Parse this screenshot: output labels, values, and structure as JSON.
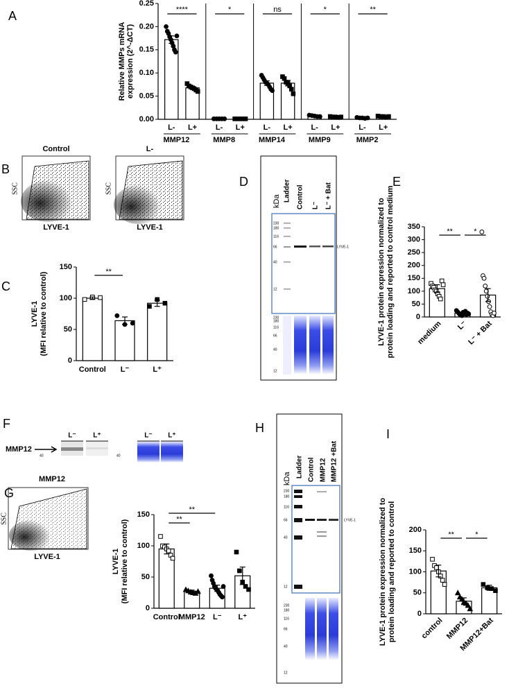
{
  "chart_data": [
    {
      "type": "grouped-bar",
      "panel": "A",
      "y_label": [
        "Relative MMPs  mRNA",
        "expression (2^-ΔCT)"
      ],
      "ylim": [
        0,
        0.25
      ],
      "yticks": [
        {
          "value": 0,
          "label": "0.00"
        },
        {
          "value": 0.05,
          "label": "0.05"
        },
        {
          "value": 0.1,
          "label": "0.10"
        },
        {
          "value": 0.15,
          "label": "0.15"
        },
        {
          "value": 0.2,
          "label": "0.20"
        },
        {
          "value": 0.25,
          "label": "0.25"
        }
      ],
      "color": "#ffffff",
      "markers": [
        "circle",
        "square"
      ],
      "groups": [
        {
          "name": "MMP12",
          "categories": [
            "L-",
            "L+"
          ],
          "values": [
            0.172,
            0.068
          ],
          "errors": [
            0.008,
            0.003
          ],
          "significance": "****",
          "points": [
            [
              0.2,
              0.19,
              0.185,
              0.178,
              0.172,
              0.165,
              0.158,
              0.15,
              0.145,
              0.18
            ],
            [
              0.077,
              0.072,
              0.07,
              0.068,
              0.066,
              0.063,
              0.06
            ]
          ]
        },
        {
          "name": "MMP8",
          "categories": [
            "L-",
            "L+"
          ],
          "values": [
            0.001,
            0.001
          ],
          "errors": [
            0.0002,
            0.0002
          ],
          "significance": "*",
          "points": [
            [
              0.001,
              0.001,
              0.001,
              0.001,
              0.001
            ],
            [
              0.001,
              0.001,
              0.001,
              0.001
            ]
          ]
        },
        {
          "name": "MMP14",
          "categories": [
            "L-",
            "L+"
          ],
          "values": [
            0.078,
            0.078
          ],
          "errors": [
            0.005,
            0.006
          ],
          "significance": "ns",
          "points": [
            [
              0.095,
              0.09,
              0.085,
              0.08,
              0.078,
              0.075,
              0.07,
              0.065,
              0.062
            ],
            [
              0.092,
              0.088,
              0.08,
              0.078,
              0.072,
              0.065,
              0.055
            ]
          ]
        },
        {
          "name": "MMP9",
          "categories": [
            "L-",
            "L+"
          ],
          "values": [
            0.007,
            0.005
          ],
          "errors": [
            0.001,
            0.001
          ],
          "significance": "*",
          "points": [
            [
              0.009,
              0.008,
              0.007,
              0.006,
              0.006
            ],
            [
              0.006,
              0.005,
              0.005,
              0.004,
              0.005
            ]
          ]
        },
        {
          "name": "MMP2",
          "categories": [
            "L-",
            "L+"
          ],
          "values": [
            0.003,
            0.006
          ],
          "errors": [
            0.0005,
            0.0005
          ],
          "significance": "**",
          "points": [
            [
              0.004,
              0.003,
              0.003,
              0.002,
              0.003
            ],
            [
              0.007,
              0.006,
              0.006,
              0.005,
              0.006
            ]
          ]
        }
      ]
    },
    {
      "type": "bar",
      "panel": "C",
      "y_label": [
        "LYVE-1",
        "(MFI relative to control)"
      ],
      "categories": [
        "Control",
        "L⁻",
        "L⁺"
      ],
      "values": [
        100,
        64,
        92
      ],
      "errors": [
        2,
        6,
        5
      ],
      "points": [
        [
          98,
          102,
          101
        ],
        [
          72,
          58,
          60
        ],
        [
          87,
          98,
          92
        ]
      ],
      "markers": [
        "square-open",
        "circle",
        "square"
      ],
      "significance": [
        {
          "from": "Control",
          "to": "L⁻",
          "label": "**"
        }
      ],
      "ylim": [
        0,
        150
      ],
      "yticks": [
        0,
        50,
        100,
        150
      ],
      "color": "#ffffff"
    },
    {
      "type": "bar",
      "panel": "E",
      "y_label": [
        "LYVE-1 protein expression normalized  to",
        "protein loading and reported to control medium"
      ],
      "categories": [
        "medium",
        "L⁻",
        "L⁻ + Bat"
      ],
      "values": [
        110,
        15,
        85
      ],
      "errors": [
        15,
        4,
        25
      ],
      "points": [
        [
          130,
          120,
          115,
          105,
          100,
          90,
          80,
          70,
          140,
          125
        ],
        [
          25,
          20,
          15,
          10,
          8,
          5,
          18,
          12,
          22,
          10,
          15,
          12
        ],
        [
          330,
          160,
          150,
          120,
          100,
          80,
          60,
          40,
          20,
          10,
          5,
          15
        ]
      ],
      "markers": [
        "square-open",
        "circle",
        "circle-open"
      ],
      "significance": [
        {
          "from": "medium",
          "to": "L⁻",
          "label": "**"
        },
        {
          "from": "L⁻",
          "to": "L⁻ + Bat",
          "label": "*"
        }
      ],
      "ylim": [
        0,
        350
      ],
      "yticks": [
        0,
        50,
        100,
        150,
        200,
        250,
        300,
        350
      ],
      "color": "#ffffff",
      "rotate_labels": true
    },
    {
      "type": "bar",
      "panel": "G",
      "y_label": [
        "LYVE-1",
        "(MFI relative to control)"
      ],
      "categories": [
        "Control",
        "MMP12",
        "L⁻",
        "L⁺"
      ],
      "values": [
        95,
        27,
        32,
        52
      ],
      "errors": [
        8,
        2,
        5,
        14
      ],
      "points": [
        [
          115,
          100,
          98,
          95,
          92,
          85,
          80
        ],
        [
          30,
          28,
          26,
          25,
          24,
          27
        ],
        [
          52,
          45,
          40,
          35,
          32,
          30,
          28,
          25,
          22,
          20,
          18,
          35
        ],
        [
          90,
          60,
          42,
          35,
          30
        ]
      ],
      "markers": [
        "square-open",
        "triangle",
        "circle",
        "square"
      ],
      "significance": [
        {
          "from": "Control",
          "to": "MMP12",
          "label": "**"
        },
        {
          "from": "Control",
          "to": "L⁻",
          "label": "**"
        }
      ],
      "ylim": [
        0,
        150
      ],
      "yticks": [
        0,
        50,
        100,
        150
      ],
      "color": "#ffffff"
    },
    {
      "type": "bar",
      "panel": "I",
      "y_label": [
        "LYVE-1 protein expression normalized  to",
        "protein loading and reported to control"
      ],
      "categories": [
        "control",
        "MMP12",
        "MMP12+Bat"
      ],
      "values": [
        102,
        30,
        62
      ],
      "errors": [
        14,
        8,
        6
      ],
      "points": [
        [
          130,
          115,
          110,
          100,
          90,
          80,
          70
        ],
        [
          50,
          40,
          35,
          28,
          25,
          20,
          12
        ],
        [
          70,
          62,
          60,
          55
        ]
      ],
      "markers": [
        "square-open",
        "triangle",
        "square"
      ],
      "significance": [
        {
          "from": "control",
          "to": "MMP12",
          "label": "**"
        },
        {
          "from": "MMP12",
          "to": "MMP12+Bat",
          "label": "*"
        }
      ],
      "ylim": [
        0,
        200
      ],
      "yticks": [
        0,
        50,
        100,
        150,
        200
      ],
      "color": "#ffffff",
      "rotate_labels": true
    }
  ],
  "flow": [
    {
      "panel": "B",
      "plots": [
        {
          "title": "Control",
          "x_label": "LYVE-1",
          "y_label": "SSC"
        },
        {
          "title": "L-",
          "x_label": "LYVE-1",
          "y_label": "SSC"
        }
      ]
    },
    {
      "panel": "G",
      "plots": [
        {
          "title": "MMP12",
          "x_label": "LYVE-1",
          "y_label": "SSC"
        }
      ]
    }
  ],
  "blots": [
    {
      "panel": "D",
      "unit": "kDa",
      "lanes": [
        "Ladder",
        "Control",
        "L⁻",
        "L⁻ + Bat"
      ],
      "band": "LYVE-1",
      "gels": [
        {
          "ladder": [
            230,
            180,
            116,
            66,
            40,
            12
          ]
        },
        {
          "ladder": [
            230,
            180,
            116,
            66,
            40,
            12
          ]
        }
      ]
    },
    {
      "panel": "F",
      "band": "MMP12",
      "gels": [
        {
          "lanes": [
            "L⁻",
            "L⁺"
          ],
          "ladder": [
            40
          ]
        },
        {
          "lanes": [
            "L⁻",
            "L⁺"
          ],
          "ladder": [
            40
          ]
        }
      ]
    },
    {
      "panel": "H",
      "unit": "kDa",
      "lanes": [
        "Ladder",
        "Control",
        "MMP12",
        "MMP12 +Bat"
      ],
      "band": "LYVE-1",
      "gels": [
        {
          "ladder": [
            230,
            180,
            116,
            66,
            40,
            12
          ]
        },
        {
          "ladder": [
            230,
            180,
            116,
            66,
            40,
            12
          ]
        }
      ]
    }
  ]
}
